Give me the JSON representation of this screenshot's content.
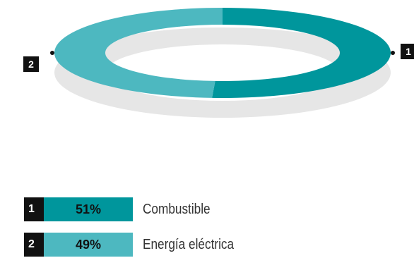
{
  "chart_data": {
    "type": "pie",
    "series": [
      {
        "index": "1",
        "label": "Combustible",
        "value": 51,
        "display": "51%",
        "color": "#00969c"
      },
      {
        "index": "2",
        "label": "Energía eléctrica",
        "value": 49,
        "display": "49%",
        "color": "#4db8c0"
      }
    ],
    "shadow_color": "#e6e6e6"
  }
}
